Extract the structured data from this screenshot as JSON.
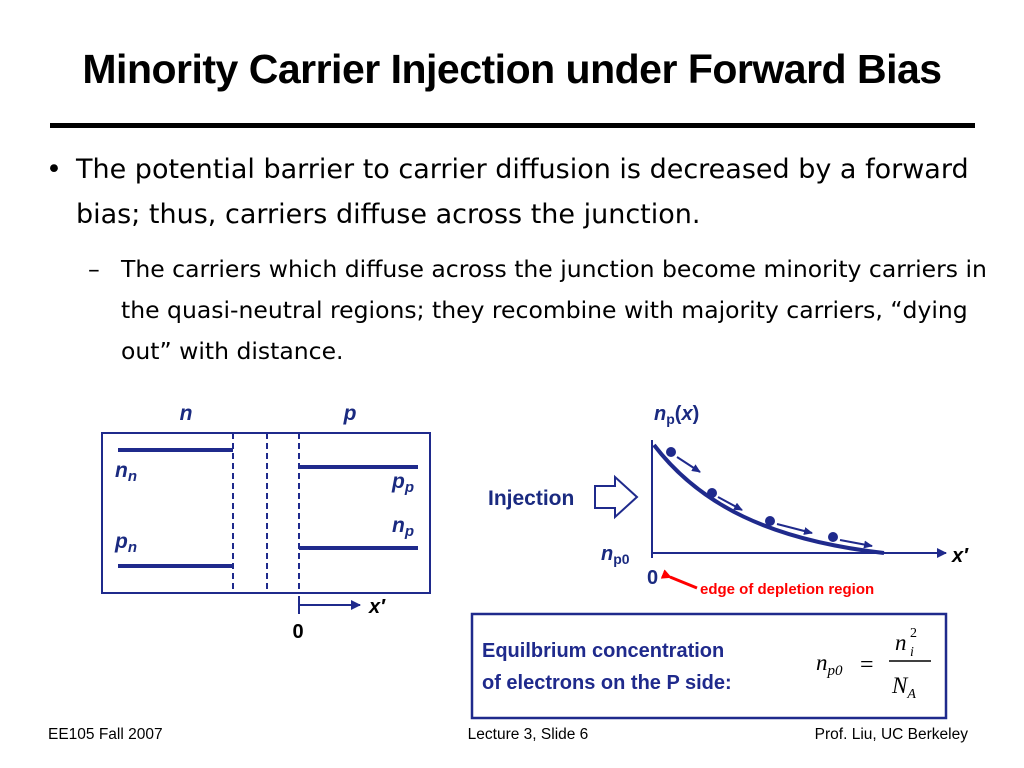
{
  "slide": {
    "title": "Minority Carrier Injection under Forward Bias",
    "bullets": [
      {
        "mark": "•",
        "text": "The potential barrier to carrier diffusion is decreased by a forward bias; thus, carriers diffuse across the junction.",
        "sub": [
          {
            "mark": "–",
            "text": "The carriers which diffuse across the junction become minority carriers in the quasi-neutral regions; they recombine with majority carriers, “dying out” with distance."
          }
        ]
      }
    ]
  },
  "left_diagram": {
    "region_n": "n",
    "region_p": "p",
    "nn": {
      "base": "n",
      "sub": "n"
    },
    "pn": {
      "base": "p",
      "sub": "n"
    },
    "pp": {
      "base": "p",
      "sub": "p"
    },
    "np": {
      "base": "n",
      "sub": "p"
    },
    "axis_label": "x′",
    "origin": "0"
  },
  "right_diagram": {
    "y_label": {
      "base": "n",
      "sub": "p",
      "arg": "x"
    },
    "y0_label": {
      "base": "n",
      "sub": "p0"
    },
    "x_label": "x′",
    "origin": "0",
    "injection": "Injection",
    "edge_label": "edge of depletion region"
  },
  "equation_box": {
    "line1": "Equilbrium concentration",
    "line2": "of electrons on the P side:",
    "lhs": {
      "base": "n",
      "sub": "p0"
    },
    "eq": "=",
    "num": {
      "base": "n",
      "sub": "i",
      "sup": "2"
    },
    "den": {
      "base": "N",
      "sub": "A"
    }
  },
  "colors": {
    "navy": "#1f2a8c",
    "label_blue": "#1a2a80",
    "red": "#ff0000"
  },
  "footer": {
    "left": "EE105 Fall 2007",
    "center": "Lecture 3, Slide 6",
    "right": "Prof. Liu, UC Berkeley"
  }
}
